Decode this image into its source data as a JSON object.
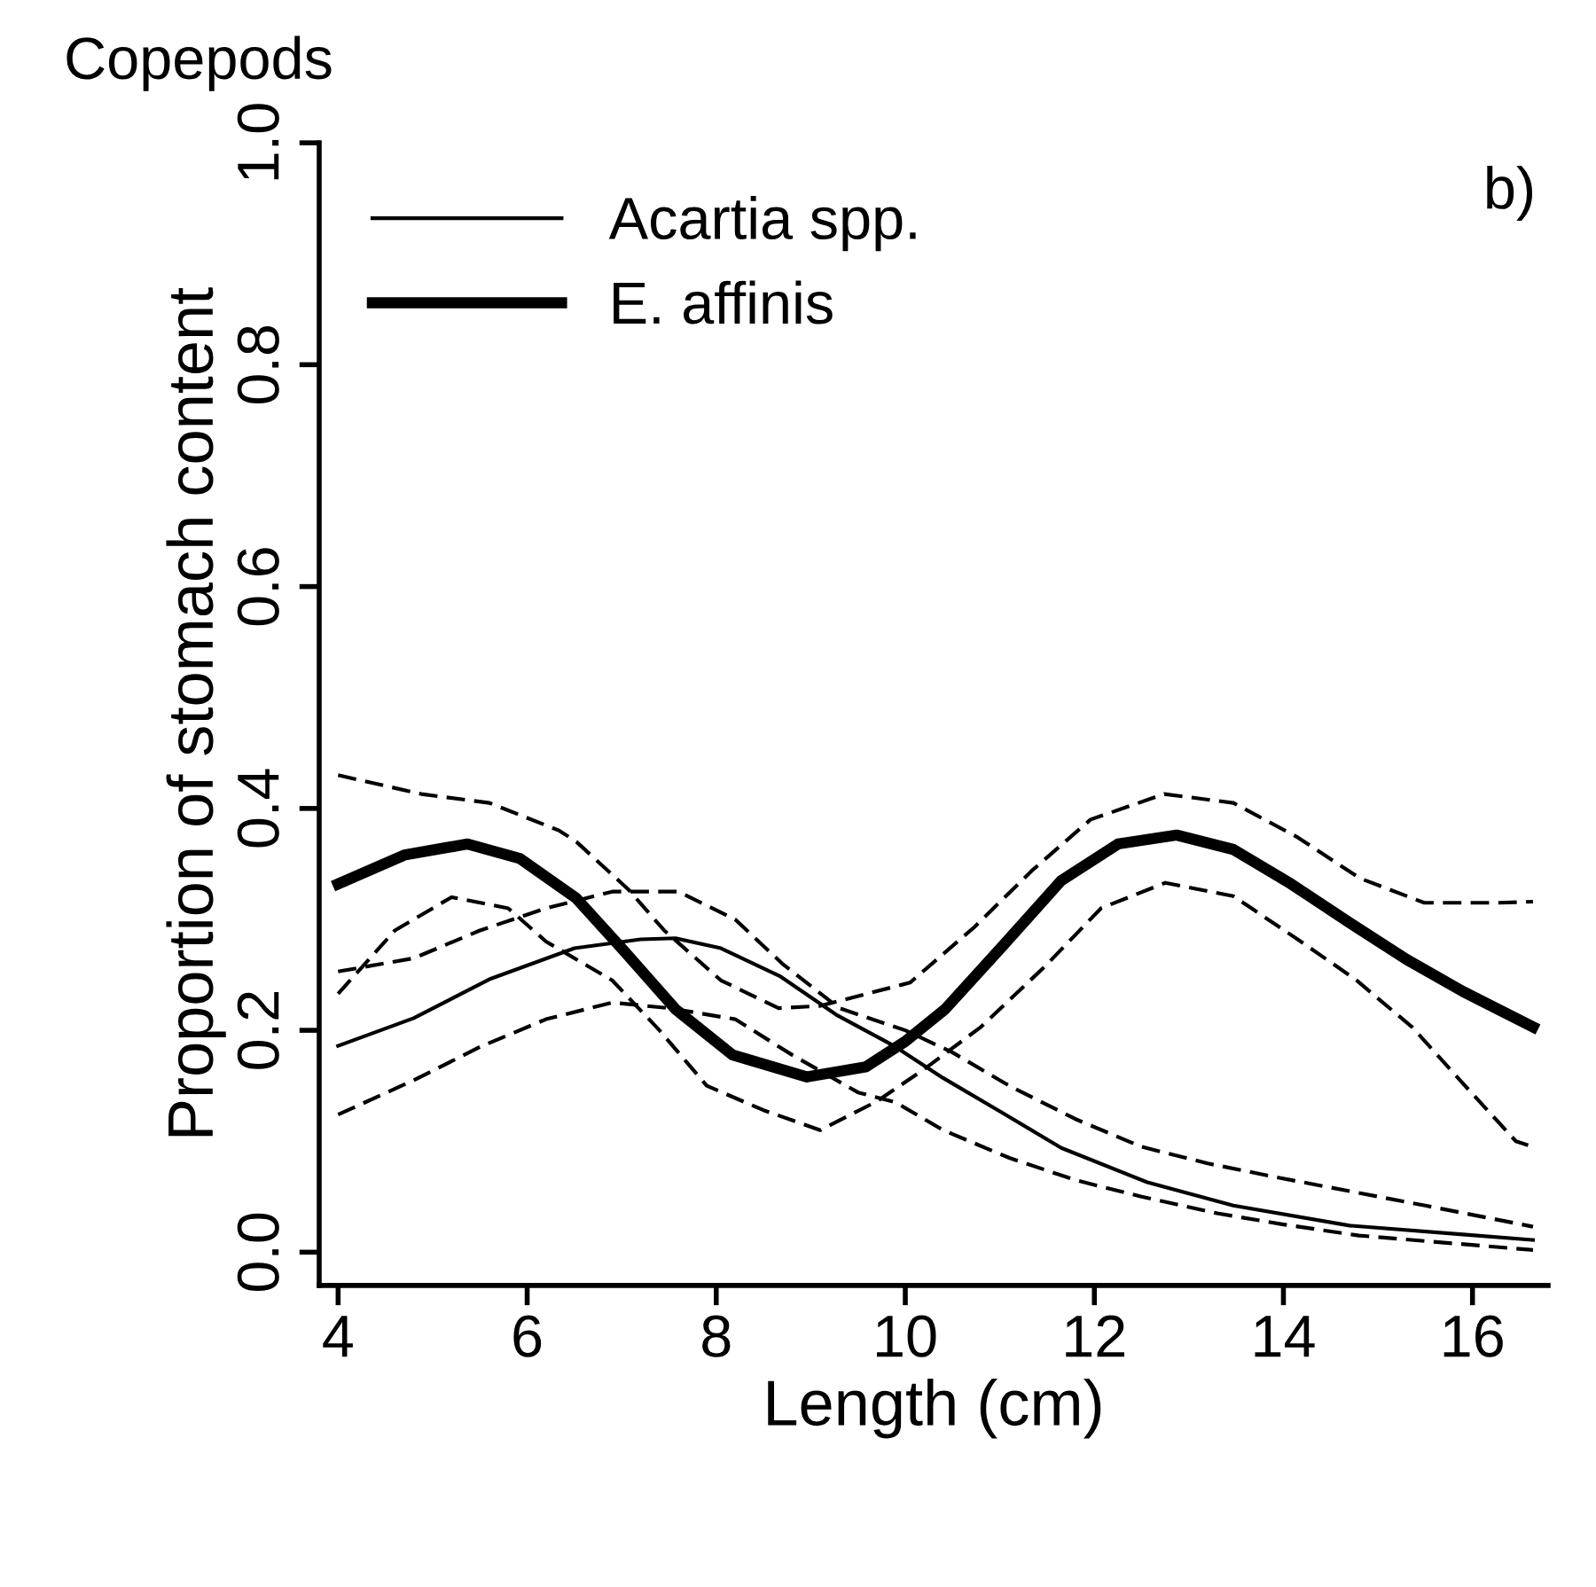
{
  "chart_data": {
    "type": "line",
    "title": "Copepods",
    "xlabel": "Length (cm)",
    "ylabel": "Proportion of stomach content",
    "annotations": [
      "b)"
    ],
    "series": [
      {
        "name": "Acartia spp.",
        "color": "#000000",
        "line_style": "solid",
        "x": [
          4,
          4.8,
          5.6,
          6.5,
          7.2,
          7.57,
          8.05,
          8.67,
          9.27,
          9.88,
          10.4,
          11.04,
          11.65,
          12.56,
          13.47,
          14.7,
          15.9,
          16.64
        ],
        "values": [
          0.186,
          0.211,
          0.246,
          0.274,
          0.282,
          0.283,
          0.274,
          0.249,
          0.214,
          0.186,
          0.157,
          0.125,
          0.094,
          0.063,
          0.042,
          0.024,
          0.016,
          0.011
        ]
      },
      {
        "name": "E. affinis",
        "color": "#000000",
        "line_style": "solid",
        "x": [
          4,
          4.7,
          5.37,
          5.92,
          6.52,
          7.02,
          7.57,
          8.17,
          8.96,
          9.58,
          10.0,
          10.42,
          11.04,
          11.65,
          12.25,
          12.87,
          13.47,
          14.08,
          14.7,
          15.3,
          15.9,
          16.64
        ],
        "values": [
          0.332,
          0.358,
          0.368,
          0.355,
          0.319,
          0.272,
          0.219,
          0.178,
          0.158,
          0.167,
          0.19,
          0.219,
          0.277,
          0.335,
          0.368,
          0.376,
          0.363,
          0.332,
          0.297,
          0.264,
          0.235,
          0.203
        ]
      },
      {
        "color": "#000000",
        "line_style": "dashed",
        "x": [
          4,
          4.8,
          5.5,
          6.2,
          6.9,
          7.6,
          8.2,
          8.7,
          9.3,
          10.0,
          10.5,
          11.1,
          11.8,
          12.5,
          13.2,
          13.9,
          14.7,
          15.5,
          16.64
        ],
        "values": [
          0.253,
          0.265,
          0.29,
          0.31,
          0.325,
          0.325,
          0.3,
          0.26,
          0.22,
          0.2,
          0.18,
          0.15,
          0.12,
          0.095,
          0.08,
          0.068,
          0.055,
          0.042,
          0.023
        ]
      },
      {
        "color": "#000000",
        "line_style": "dashed",
        "x": [
          4,
          4.8,
          5.5,
          6.2,
          6.9,
          7.5,
          8.2,
          8.8,
          9.5,
          9.9,
          10.4,
          11.1,
          11.8,
          12.5,
          13.3,
          14.0,
          14.8,
          15.5,
          16.64
        ],
        "values": [
          0.124,
          0.155,
          0.185,
          0.21,
          0.225,
          0.22,
          0.21,
          0.178,
          0.144,
          0.135,
          0.11,
          0.085,
          0.065,
          0.05,
          0.035,
          0.025,
          0.015,
          0.01,
          0.002
        ]
      },
      {
        "color": "#000000",
        "line_style": "dashed",
        "x": [
          4,
          4.88,
          5.6,
          6.34,
          6.52,
          7.07,
          7.45,
          8.05,
          8.66,
          9.1,
          10.05,
          10.73,
          11.34,
          11.96,
          12.74,
          13.47,
          14.15,
          14.81,
          15.49,
          16.28,
          16.64
        ],
        "values": [
          0.43,
          0.413,
          0.405,
          0.38,
          0.37,
          0.327,
          0.29,
          0.245,
          0.22,
          0.222,
          0.243,
          0.293,
          0.344,
          0.39,
          0.413,
          0.405,
          0.374,
          0.337,
          0.315,
          0.315,
          0.316
        ]
      },
      {
        "color": "#000000",
        "line_style": "dashed",
        "x": [
          4,
          4.6,
          5.2,
          5.8,
          6.2,
          6.9,
          7.4,
          7.9,
          8.5,
          9.1,
          9.7,
          10.2,
          10.8,
          11.47,
          12.07,
          12.75,
          13.47,
          14.15,
          14.76,
          15.36,
          15.9,
          16.46,
          16.64
        ],
        "values": [
          0.233,
          0.29,
          0.32,
          0.31,
          0.28,
          0.245,
          0.2,
          0.15,
          0.128,
          0.11,
          0.136,
          0.165,
          0.203,
          0.257,
          0.31,
          0.333,
          0.321,
          0.282,
          0.246,
          0.203,
          0.152,
          0.1,
          0.095
        ]
      }
    ],
    "xlim": [
      3.8,
      16.8
    ],
    "ylim": [
      -0.03,
      1.0
    ],
    "xticks": [
      4,
      6,
      8,
      10,
      12,
      14,
      16
    ],
    "yticks": [
      {
        "value": 0,
        "label": "0.0"
      },
      {
        "value": 0.2,
        "label": "0.2"
      },
      {
        "value": 0.4,
        "label": "0.4"
      },
      {
        "value": 0.6,
        "label": "0.6"
      },
      {
        "value": 0.8,
        "label": "0.8"
      },
      {
        "value": 1.0,
        "label": "1.0"
      }
    ],
    "grid": false,
    "legend": "top left",
    "marker": "none"
  }
}
